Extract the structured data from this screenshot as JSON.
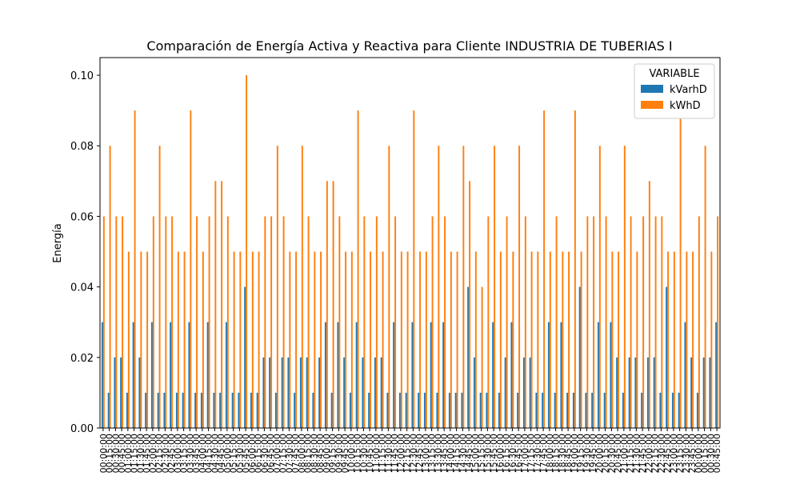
{
  "chart_data": {
    "type": "bar",
    "title": "Comparación de Energía Activa y Reactiva para Cliente INDUSTRIA DE TUBERIAS I",
    "ylabel": "Energía",
    "legend_title": "VARIABLE",
    "legend": "upper right",
    "categories": [
      "00:00:00",
      "00:15:00",
      "00:30:00",
      "00:45:00",
      "01:00:00",
      "01:15:00",
      "01:30:00",
      "01:45:00",
      "02:00:00",
      "02:15:00",
      "02:30:00",
      "02:45:00",
      "03:00:00",
      "03:15:00",
      "03:30:00",
      "03:45:00",
      "04:00:00",
      "04:15:00",
      "04:30:00",
      "04:45:00",
      "05:00:00",
      "05:15:00",
      "05:30:00",
      "05:45:00",
      "06:00:00",
      "06:15:00",
      "06:30:00",
      "06:45:00",
      "07:00:00",
      "07:15:00",
      "07:30:00",
      "07:45:00",
      "08:00:00",
      "08:15:00",
      "08:30:00",
      "08:45:00",
      "09:00:00",
      "09:15:00",
      "09:30:00",
      "09:45:00",
      "10:00:00",
      "10:15:00",
      "10:30:00",
      "10:45:00",
      "11:00:00",
      "11:15:00",
      "11:30:00",
      "11:45:00",
      "12:00:00",
      "12:15:00",
      "12:30:00",
      "12:45:00",
      "13:00:00",
      "13:15:00",
      "13:30:00",
      "13:45:00",
      "14:00:00",
      "14:15:00",
      "14:30:00",
      "14:45:00",
      "15:00:00",
      "15:15:00",
      "15:30:00",
      "15:45:00",
      "16:00:00",
      "16:15:00",
      "16:30:00",
      "16:45:00",
      "17:00:00",
      "17:15:00",
      "17:30:00",
      "17:45:00",
      "18:00:00",
      "18:15:00",
      "18:30:00",
      "18:45:00",
      "19:00:00",
      "19:15:00",
      "19:30:00",
      "19:45:00",
      "20:00:00",
      "20:15:00",
      "20:30:00",
      "20:45:00",
      "21:00:00",
      "21:15:00",
      "21:30:00",
      "21:45:00",
      "22:00:00",
      "22:15:00",
      "22:30:00",
      "22:45:00",
      "23:00:00",
      "23:15:00",
      "23:30:00",
      "23:45:00",
      "00:00:00",
      "00:15:00",
      "00:30:00",
      "00:45:00"
    ],
    "series": [
      {
        "name": "kVarhD",
        "color": "#1f77b4",
        "values": [
          0.03,
          0.01,
          0.02,
          0.02,
          0.01,
          0.03,
          0.02,
          0.01,
          0.03,
          0.01,
          0.01,
          0.03,
          0.01,
          0.01,
          0.03,
          0.01,
          0.01,
          0.03,
          0.01,
          0.01,
          0.03,
          0.01,
          0.01,
          0.04,
          0.01,
          0.01,
          0.02,
          0.02,
          0.01,
          0.02,
          0.02,
          0.01,
          0.02,
          0.02,
          0.01,
          0.02,
          0.03,
          0.01,
          0.03,
          0.02,
          0.01,
          0.03,
          0.02,
          0.01,
          0.02,
          0.02,
          0.01,
          0.03,
          0.01,
          0.01,
          0.03,
          0.01,
          0.01,
          0.03,
          0.01,
          0.03,
          0.01,
          0.01,
          0.01,
          0.04,
          0.02,
          0.01,
          0.01,
          0.03,
          0.01,
          0.02,
          0.03,
          0.01,
          0.02,
          0.02,
          0.01,
          0.01,
          0.03,
          0.01,
          0.03,
          0.01,
          0.01,
          0.04,
          0.01,
          0.01,
          0.03,
          0.01,
          0.03,
          0.02,
          0.01,
          0.02,
          0.02,
          0.01,
          0.02,
          0.02,
          0.01,
          0.04,
          0.01,
          0.01,
          0.03,
          0.02,
          0.01,
          0.02,
          0.02,
          0.03
        ]
      },
      {
        "name": "kWhD",
        "color": "#ff7f0e",
        "values": [
          0.06,
          0.08,
          0.06,
          0.06,
          0.05,
          0.09,
          0.05,
          0.05,
          0.06,
          0.08,
          0.06,
          0.06,
          0.05,
          0.05,
          0.09,
          0.06,
          0.05,
          0.06,
          0.07,
          0.07,
          0.06,
          0.05,
          0.05,
          0.1,
          0.05,
          0.05,
          0.06,
          0.06,
          0.08,
          0.06,
          0.05,
          0.05,
          0.08,
          0.06,
          0.05,
          0.05,
          0.07,
          0.07,
          0.06,
          0.05,
          0.05,
          0.09,
          0.06,
          0.05,
          0.06,
          0.05,
          0.08,
          0.06,
          0.05,
          0.05,
          0.09,
          0.05,
          0.05,
          0.06,
          0.08,
          0.06,
          0.05,
          0.05,
          0.08,
          0.07,
          0.05,
          0.04,
          0.06,
          0.08,
          0.05,
          0.06,
          0.05,
          0.08,
          0.06,
          0.05,
          0.05,
          0.09,
          0.05,
          0.06,
          0.05,
          0.05,
          0.09,
          0.05,
          0.06,
          0.06,
          0.08,
          0.06,
          0.05,
          0.05,
          0.08,
          0.06,
          0.05,
          0.06,
          0.07,
          0.06,
          0.06,
          0.05,
          0.05,
          0.09,
          0.05,
          0.05,
          0.06,
          0.08,
          0.05,
          0.06
        ]
      }
    ],
    "ylim": [
      0,
      0.105
    ],
    "yticks": [
      {
        "value": 0,
        "label": "0.00"
      },
      {
        "value": 0.02,
        "label": "0.02"
      },
      {
        "value": 0.04,
        "label": "0.04"
      },
      {
        "value": 0.06,
        "label": "0.06"
      },
      {
        "value": 0.08,
        "label": "0.08"
      },
      {
        "value": 0.1,
        "label": "0.10"
      }
    ]
  }
}
